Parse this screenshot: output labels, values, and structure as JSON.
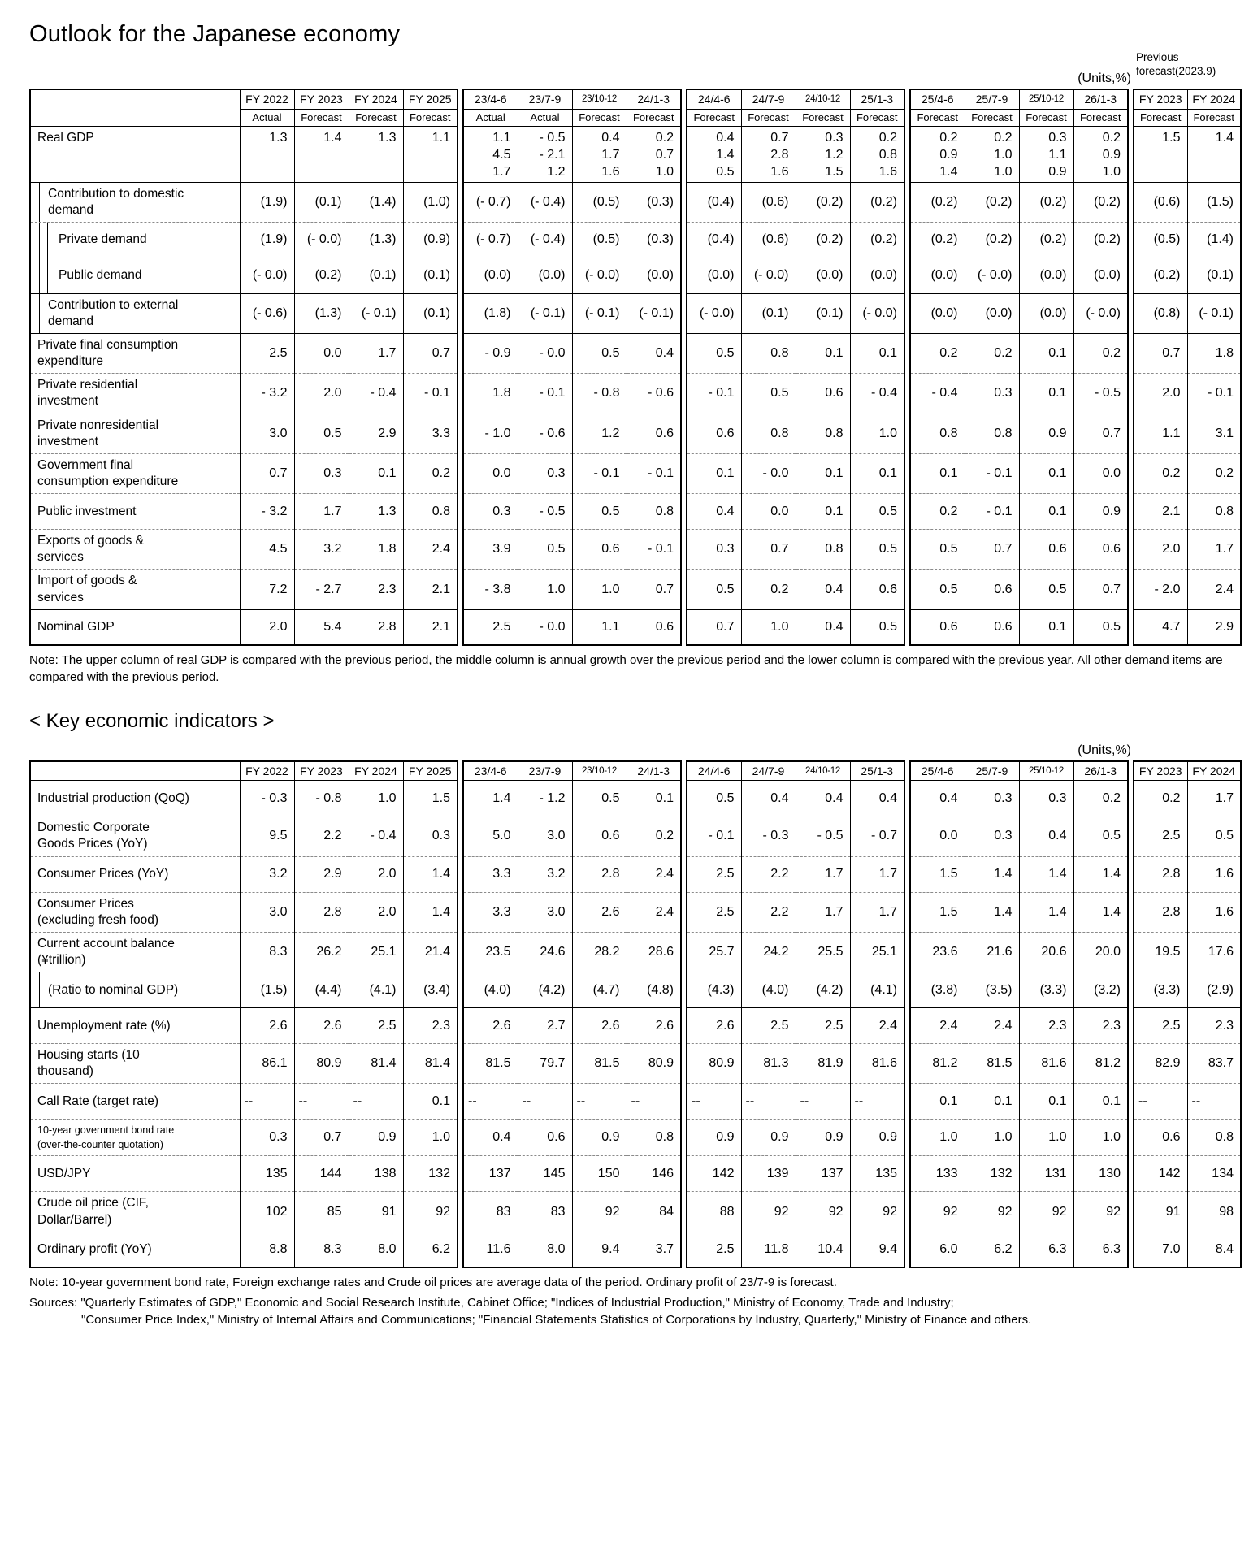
{
  "page": {
    "title": "Outlook for the Japanese economy",
    "units_label": "(Units,%)",
    "previous_forecast_label": "Previous\nforecast(2023.9)",
    "gdp_note": "Note: The upper column of real GDP is compared with the previous period, the middle column is annual growth over the previous period and the lower column is compared with the previous year. All other demand items are compared with the previous period.",
    "indicators_title": "< Key economic indicators >",
    "indicators_units_label": "(Units,%)",
    "indicators_note": "Note: 10-year government bond rate, Foreign exchange rates and Crude oil prices are average data of the period. Ordinary profit of 23/7-9 is forecast.",
    "sources_line1": "Sources: \"Quarterly Estimates of GDP,\" Economic and Social Research Institute, Cabinet Office; \"Indices of Industrial Production,\" Ministry of Economy, Trade and Industry;",
    "sources_line2": "\"Consumer Price Index,\" Ministry of Internal Affairs and Communications; \"Financial Statements Statistics of Corporations by Industry, Quarterly,\" Ministry of Finance and others."
  },
  "columns": {
    "groups": [
      {
        "cols": [
          {
            "top": "FY 2022",
            "sub": "Actual"
          },
          {
            "top": "FY 2023",
            "sub": "Forecast"
          },
          {
            "top": "FY 2024",
            "sub": "Forecast"
          },
          {
            "top": "FY 2025",
            "sub": "Forecast"
          }
        ]
      },
      {
        "cols": [
          {
            "top": "23/4-6",
            "sub": "Actual"
          },
          {
            "top": "23/7-9",
            "sub": "Actual"
          },
          {
            "top": "23/10-12",
            "sub": "Forecast"
          },
          {
            "top": "24/1-3",
            "sub": "Forecast"
          }
        ]
      },
      {
        "cols": [
          {
            "top": "24/4-6",
            "sub": "Forecast"
          },
          {
            "top": "24/7-9",
            "sub": "Forecast"
          },
          {
            "top": "24/10-12",
            "sub": "Forecast"
          },
          {
            "top": "25/1-3",
            "sub": "Forecast"
          }
        ]
      },
      {
        "cols": [
          {
            "top": "25/4-6",
            "sub": "Forecast"
          },
          {
            "top": "25/7-9",
            "sub": "Forecast"
          },
          {
            "top": "25/10-12",
            "sub": "Forecast"
          },
          {
            "top": "26/1-3",
            "sub": "Forecast"
          }
        ]
      },
      {
        "cols": [
          {
            "top": "FY 2023",
            "sub": "Forecast"
          },
          {
            "top": "FY 2024",
            "sub": "Forecast"
          }
        ]
      }
    ]
  },
  "gdp_table": {
    "rows": [
      {
        "label": "Real GDP",
        "indent": 0,
        "multiline": true,
        "cells": [
          "1.3",
          "1.4",
          "1.3",
          "1.1",
          [
            "1.1",
            "4.5",
            "1.7"
          ],
          [
            "- 0.5",
            "- 2.1",
            "1.2"
          ],
          [
            "0.4",
            "1.7",
            "1.6"
          ],
          [
            "0.2",
            "0.7",
            "1.0"
          ],
          [
            "0.4",
            "1.4",
            "0.5"
          ],
          [
            "0.7",
            "2.8",
            "1.6"
          ],
          [
            "0.3",
            "1.2",
            "1.5"
          ],
          [
            "0.2",
            "0.8",
            "1.6"
          ],
          [
            "0.2",
            "0.9",
            "1.4"
          ],
          [
            "0.2",
            "1.0",
            "1.0"
          ],
          [
            "0.3",
            "1.1",
            "0.9"
          ],
          [
            "0.2",
            "0.9",
            "1.0"
          ],
          "1.5",
          "1.4"
        ]
      },
      {
        "label": "Contribution to domestic\ndemand",
        "indent": 1,
        "sep": "solid",
        "cells": [
          "(1.9)",
          "(0.1)",
          "(1.4)",
          "(1.0)",
          "(- 0.7)",
          "(- 0.4)",
          "(0.5)",
          "(0.3)",
          "(0.4)",
          "(0.6)",
          "(0.2)",
          "(0.2)",
          "(0.2)",
          "(0.2)",
          "(0.2)",
          "(0.2)",
          "(0.6)",
          "(1.5)"
        ]
      },
      {
        "label": "Private demand",
        "indent": 2,
        "cells": [
          "(1.9)",
          "(- 0.0)",
          "(1.3)",
          "(0.9)",
          "(- 0.7)",
          "(- 0.4)",
          "(0.5)",
          "(0.3)",
          "(0.4)",
          "(0.6)",
          "(0.2)",
          "(0.2)",
          "(0.2)",
          "(0.2)",
          "(0.2)",
          "(0.2)",
          "(0.5)",
          "(1.4)"
        ]
      },
      {
        "label": "Public demand",
        "indent": 2,
        "cells": [
          "(- 0.0)",
          "(0.2)",
          "(0.1)",
          "(0.1)",
          "(0.0)",
          "(0.0)",
          "(- 0.0)",
          "(0.0)",
          "(0.0)",
          "(- 0.0)",
          "(0.0)",
          "(0.0)",
          "(0.0)",
          "(- 0.0)",
          "(0.0)",
          "(0.0)",
          "(0.2)",
          "(0.1)"
        ]
      },
      {
        "label": "Contribution to external\ndemand",
        "indent": 1,
        "sep": "solid",
        "cells": [
          "(- 0.6)",
          "(1.3)",
          "(- 0.1)",
          "(0.1)",
          "(1.8)",
          "(- 0.1)",
          "(- 0.1)",
          "(- 0.1)",
          "(- 0.0)",
          "(0.1)",
          "(0.1)",
          "(- 0.0)",
          "(0.0)",
          "(0.0)",
          "(0.0)",
          "(- 0.0)",
          "(0.8)",
          "(- 0.1)"
        ]
      },
      {
        "label": "Private final consumption\nexpenditure",
        "indent": 0,
        "sep": "solid",
        "cells": [
          "2.5",
          "0.0",
          "1.7",
          "0.7",
          "- 0.9",
          "- 0.0",
          "0.5",
          "0.4",
          "0.5",
          "0.8",
          "0.1",
          "0.1",
          "0.2",
          "0.2",
          "0.1",
          "0.2",
          "0.7",
          "1.8"
        ]
      },
      {
        "label": "Private residential\ninvestment",
        "indent": 0,
        "cells": [
          "- 3.2",
          "2.0",
          "- 0.4",
          "- 0.1",
          "1.8",
          "- 0.1",
          "- 0.8",
          "- 0.6",
          "- 0.1",
          "0.5",
          "0.6",
          "- 0.4",
          "- 0.4",
          "0.3",
          "0.1",
          "- 0.5",
          "2.0",
          "- 0.1"
        ]
      },
      {
        "label": "Private nonresidential\ninvestment",
        "indent": 0,
        "cells": [
          "3.0",
          "0.5",
          "2.9",
          "3.3",
          "- 1.0",
          "- 0.6",
          "1.2",
          "0.6",
          "0.6",
          "0.8",
          "0.8",
          "1.0",
          "0.8",
          "0.8",
          "0.9",
          "0.7",
          "1.1",
          "3.1"
        ]
      },
      {
        "label": "Government final\nconsumption expenditure",
        "indent": 0,
        "cells": [
          "0.7",
          "0.3",
          "0.1",
          "0.2",
          "0.0",
          "0.3",
          "- 0.1",
          "- 0.1",
          "0.1",
          "- 0.0",
          "0.1",
          "0.1",
          "0.1",
          "- 0.1",
          "0.1",
          "0.0",
          "0.2",
          "0.2"
        ]
      },
      {
        "label": "Public investment",
        "indent": 0,
        "cells": [
          "- 3.2",
          "1.7",
          "1.3",
          "0.8",
          "0.3",
          "- 0.5",
          "0.5",
          "0.8",
          "0.4",
          "0.0",
          "0.1",
          "0.5",
          "0.2",
          "- 0.1",
          "0.1",
          "0.9",
          "2.1",
          "0.8"
        ]
      },
      {
        "label": "Exports of goods &\nservices",
        "indent": 0,
        "cells": [
          "4.5",
          "3.2",
          "1.8",
          "2.4",
          "3.9",
          "0.5",
          "0.6",
          "- 0.1",
          "0.3",
          "0.7",
          "0.8",
          "0.5",
          "0.5",
          "0.7",
          "0.6",
          "0.6",
          "2.0",
          "1.7"
        ]
      },
      {
        "label": "Import of goods &\nservices",
        "indent": 0,
        "cells": [
          "7.2",
          "- 2.7",
          "2.3",
          "2.1",
          "- 3.8",
          "1.0",
          "1.0",
          "0.7",
          "0.5",
          "0.2",
          "0.4",
          "0.6",
          "0.5",
          "0.6",
          "0.5",
          "0.7",
          "- 2.0",
          "2.4"
        ]
      },
      {
        "label": "Nominal GDP",
        "indent": 0,
        "sep": "solid",
        "cells": [
          "2.0",
          "5.4",
          "2.8",
          "2.1",
          "2.5",
          "- 0.0",
          "1.1",
          "0.6",
          "0.7",
          "1.0",
          "0.4",
          "0.5",
          "0.6",
          "0.6",
          "0.1",
          "0.5",
          "4.7",
          "2.9"
        ]
      }
    ]
  },
  "indicators_table": {
    "rows": [
      {
        "label": "Industrial production (QoQ)",
        "indent": 0,
        "cells": [
          "- 0.3",
          "- 0.8",
          "1.0",
          "1.5",
          "1.4",
          "- 1.2",
          "0.5",
          "0.1",
          "0.5",
          "0.4",
          "0.4",
          "0.4",
          "0.4",
          "0.3",
          "0.3",
          "0.2",
          "0.2",
          "1.7"
        ]
      },
      {
        "label": "Domestic Corporate\nGoods Prices (YoY)",
        "indent": 0,
        "cells": [
          "9.5",
          "2.2",
          "- 0.4",
          "0.3",
          "5.0",
          "3.0",
          "0.6",
          "0.2",
          "- 0.1",
          "- 0.3",
          "- 0.5",
          "- 0.7",
          "0.0",
          "0.3",
          "0.4",
          "0.5",
          "2.5",
          "0.5"
        ]
      },
      {
        "label": "Consumer Prices (YoY)",
        "indent": 0,
        "cells": [
          "3.2",
          "2.9",
          "2.0",
          "1.4",
          "3.3",
          "3.2",
          "2.8",
          "2.4",
          "2.5",
          "2.2",
          "1.7",
          "1.7",
          "1.5",
          "1.4",
          "1.4",
          "1.4",
          "2.8",
          "1.6"
        ]
      },
      {
        "label": "Consumer Prices\n(excluding fresh food)",
        "indent": 0,
        "cells": [
          "3.0",
          "2.8",
          "2.0",
          "1.4",
          "3.3",
          "3.0",
          "2.6",
          "2.4",
          "2.5",
          "2.2",
          "1.7",
          "1.7",
          "1.5",
          "1.4",
          "1.4",
          "1.4",
          "2.8",
          "1.6"
        ]
      },
      {
        "label": "Current account balance\n(¥trillion)",
        "indent": 0,
        "cells": [
          "8.3",
          "26.2",
          "25.1",
          "21.4",
          "23.5",
          "24.6",
          "28.2",
          "28.6",
          "25.7",
          "24.2",
          "25.5",
          "25.1",
          "23.6",
          "21.6",
          "20.6",
          "20.0",
          "19.5",
          "17.6"
        ]
      },
      {
        "label": "(Ratio to nominal GDP)",
        "indent": 1,
        "cells": [
          "(1.5)",
          "(4.4)",
          "(4.1)",
          "(3.4)",
          "(4.0)",
          "(4.2)",
          "(4.7)",
          "(4.8)",
          "(4.3)",
          "(4.0)",
          "(4.2)",
          "(4.1)",
          "(3.8)",
          "(3.5)",
          "(3.3)",
          "(3.2)",
          "(3.3)",
          "(2.9)"
        ]
      },
      {
        "label": "Unemployment rate (%)",
        "indent": 0,
        "sep": "solid",
        "cells": [
          "2.6",
          "2.6",
          "2.5",
          "2.3",
          "2.6",
          "2.7",
          "2.6",
          "2.6",
          "2.6",
          "2.5",
          "2.5",
          "2.4",
          "2.4",
          "2.4",
          "2.3",
          "2.3",
          "2.5",
          "2.3"
        ]
      },
      {
        "label": "Housing starts (10\nthousand)",
        "indent": 0,
        "cells": [
          "86.1",
          "80.9",
          "81.4",
          "81.4",
          "81.5",
          "79.7",
          "81.5",
          "80.9",
          "80.9",
          "81.3",
          "81.9",
          "81.6",
          "81.2",
          "81.5",
          "81.6",
          "81.2",
          "82.9",
          "83.7"
        ]
      },
      {
        "label": "Call Rate (target rate)",
        "indent": 0,
        "cells": [
          "--",
          "--",
          "--",
          "0.1",
          "--",
          "--",
          "--",
          "--",
          "--",
          "--",
          "--",
          "--",
          "0.1",
          "0.1",
          "0.1",
          "0.1",
          "--",
          "--"
        ]
      },
      {
        "label": "10-year government bond rate\n(over-the-counter quotation)",
        "indent": 0,
        "small_label": true,
        "cells": [
          "0.3",
          "0.7",
          "0.9",
          "1.0",
          "0.4",
          "0.6",
          "0.9",
          "0.8",
          "0.9",
          "0.9",
          "0.9",
          "0.9",
          "1.0",
          "1.0",
          "1.0",
          "1.0",
          "0.6",
          "0.8"
        ]
      },
      {
        "label": "USD/JPY",
        "indent": 0,
        "cells": [
          "135",
          "144",
          "138",
          "132",
          "137",
          "145",
          "150",
          "146",
          "142",
          "139",
          "137",
          "135",
          "133",
          "132",
          "131",
          "130",
          "142",
          "134"
        ]
      },
      {
        "label": "Crude oil price (CIF,\nDollar/Barrel)",
        "indent": 0,
        "cells": [
          "102",
          "85",
          "91",
          "92",
          "83",
          "83",
          "92",
          "84",
          "88",
          "92",
          "92",
          "92",
          "92",
          "92",
          "92",
          "92",
          "91",
          "98"
        ]
      },
      {
        "label": "Ordinary profit (YoY)",
        "indent": 0,
        "cells": [
          "8.8",
          "8.3",
          "8.0",
          "6.2",
          "11.6",
          "8.0",
          "9.4",
          "3.7",
          "2.5",
          "11.8",
          "10.4",
          "9.4",
          "6.0",
          "6.2",
          "6.3",
          "6.3",
          "7.0",
          "8.4"
        ]
      }
    ]
  }
}
